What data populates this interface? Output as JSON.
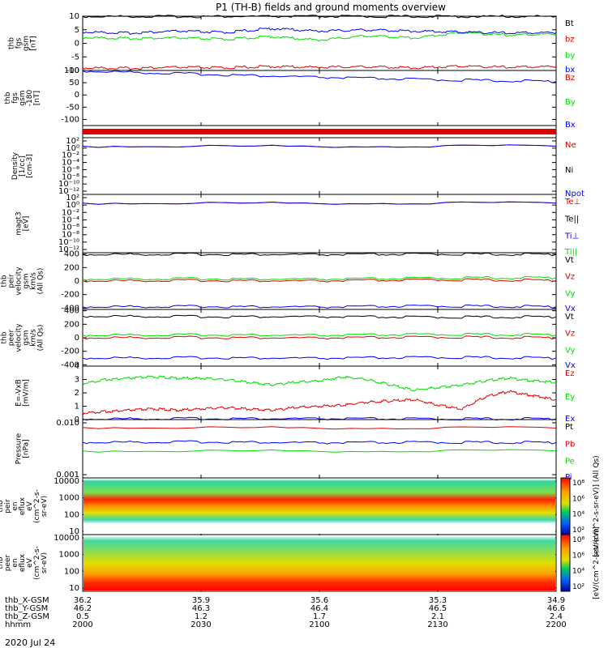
{
  "title": "P1 (TH-B) fields and ground moments overview",
  "date": "2020 Jul 24",
  "colors": {
    "black": "#000000",
    "red": "#e00000",
    "green": "#00dd00",
    "blue": "#0000ff",
    "magenta": "#c800c8"
  },
  "chart_data": [
    {
      "type": "line",
      "ylabel": [
        "thb",
        "fgs",
        "gsm",
        "[nT]"
      ],
      "ylim": [
        -10,
        10
      ],
      "yticks": [
        "10",
        "5",
        "0",
        "-5",
        "-10"
      ],
      "yticks_values": [
        10,
        5,
        0,
        -5,
        -10
      ],
      "legend": [
        {
          "label": "Bt",
          "color": "#000000"
        },
        {
          "label": "bz",
          "color": "#e00000"
        },
        {
          "label": "by",
          "color": "#00dd00"
        },
        {
          "label": "bx",
          "color": "#0000ff"
        }
      ],
      "series": [
        {
          "name": "Bt",
          "color": "#000000",
          "x": [
            0,
            0.2,
            0.4,
            0.6,
            0.8,
            1.0
          ],
          "values": [
            9.9,
            9.9,
            9.9,
            9.9,
            9.9,
            9.9
          ]
        },
        {
          "name": "bz",
          "color": "#e00000",
          "x": [
            0,
            0.1,
            0.2,
            0.3,
            0.4,
            0.5,
            0.6,
            0.7,
            0.8,
            0.9,
            1.0
          ],
          "values": [
            -9.0,
            -9.2,
            -8.8,
            -9.0,
            -8.5,
            -8.8,
            -8.6,
            -9.0,
            -8.4,
            -8.8,
            -8.5
          ]
        },
        {
          "name": "by",
          "color": "#00dd00",
          "x": [
            0,
            0.1,
            0.2,
            0.3,
            0.4,
            0.5,
            0.6,
            0.7,
            0.8,
            0.9,
            1.0
          ],
          "values": [
            2.2,
            1.8,
            2.0,
            1.5,
            2.5,
            1.2,
            2.8,
            2.0,
            4.0,
            3.0,
            3.5
          ]
        },
        {
          "name": "bx",
          "color": "#0000ff",
          "x": [
            0,
            0.1,
            0.2,
            0.3,
            0.4,
            0.5,
            0.6,
            0.7,
            0.8,
            0.9,
            1.0
          ],
          "values": [
            4.2,
            3.8,
            4.5,
            4.0,
            5.5,
            4.5,
            5.0,
            4.5,
            4.2,
            3.8,
            4.0
          ]
        }
      ]
    },
    {
      "type": "line",
      "ylabel": [
        "thb",
        "fgs",
        "gsm",
        "-180",
        "[nT]"
      ],
      "ylim": [
        -125,
        100
      ],
      "yticks": [
        "100",
        "50",
        "0",
        "-50",
        "-100"
      ],
      "yticks_values": [
        100,
        50,
        0,
        -50,
        -100
      ],
      "legend": [
        {
          "label": "Bz",
          "color": "#e00000"
        },
        {
          "label": "By",
          "color": "#00dd00"
        },
        {
          "label": "Bx",
          "color": "#0000ff"
        }
      ],
      "series": [
        {
          "name": "Bx",
          "color": "#0000ff",
          "x": [
            0,
            0.25,
            0.5,
            0.75,
            1.0
          ],
          "values": [
            98,
            85,
            72,
            62,
            55
          ]
        }
      ]
    },
    {
      "type": "band",
      "description_color": "#e00000"
    },
    {
      "type": "line",
      "ylabel": [
        "Density",
        "[1/cc]",
        "[cm-3]"
      ],
      "yscale": "log",
      "yticks": [
        "10²",
        "10⁰",
        "10⁻²",
        "10⁻⁴",
        "10⁻⁶",
        "10⁻⁸",
        "10⁻¹⁰",
        "10⁻¹²"
      ],
      "legend": [
        {
          "label": "Ne",
          "color": "#e00000"
        },
        {
          "label": "Ni",
          "color": "#000000"
        },
        {
          "label": "Npot",
          "color": "#0000ff"
        }
      ],
      "series": [
        {
          "name": "Ne",
          "color": "#e00000",
          "x": [
            0,
            1
          ],
          "values": [
            1.0,
            1.0
          ]
        },
        {
          "name": "Npot",
          "color": "#0000ff",
          "x": [
            0,
            1
          ],
          "values": [
            1.0,
            1.0
          ]
        }
      ]
    },
    {
      "type": "line",
      "ylabel": [
        "magt3",
        "[eV]"
      ],
      "yscale": "log",
      "yticks": [
        "10²",
        "10⁰",
        "10⁻²",
        "10⁻⁴",
        "10⁻⁶",
        "10⁻⁸",
        "10⁻¹⁰",
        "10⁻¹²"
      ],
      "legend": [
        {
          "label": "Te⊥",
          "color": "#e00000"
        },
        {
          "label": "Te||",
          "color": "#000000"
        },
        {
          "label": "Ti⊥",
          "color": "#0000ff"
        },
        {
          "label": "Ti||",
          "color": "#00dd00"
        }
      ],
      "series": [
        {
          "name": "Te⊥",
          "color": "#e00000",
          "x": [
            0,
            1
          ],
          "values": [
            1.0,
            1.0
          ]
        },
        {
          "name": "Ti⊥",
          "color": "#0000ff",
          "x": [
            0,
            1
          ],
          "values": [
            1.0,
            1.0
          ]
        }
      ]
    },
    {
      "type": "line",
      "ylabel": [
        "thb",
        "peir",
        "velocity",
        "gsm",
        "km/s",
        "(All Qs)"
      ],
      "ylim": [
        -420,
        420
      ],
      "yticks": [
        "400",
        "200",
        "0",
        "-200",
        "-400"
      ],
      "yticks_values": [
        400,
        200,
        0,
        -200,
        -400
      ],
      "legend": [
        {
          "label": "Vt",
          "color": "#000000"
        },
        {
          "label": "Vz",
          "color": "#e00000"
        },
        {
          "label": "Vy",
          "color": "#00dd00"
        },
        {
          "label": "Vx",
          "color": "#0000ff"
        }
      ],
      "series": [
        {
          "name": "Vt",
          "color": "#000000",
          "x": [
            0,
            0.25,
            0.5,
            0.75,
            1.0
          ],
          "values": [
            395,
            398,
            390,
            400,
            395
          ]
        },
        {
          "name": "Vz",
          "color": "#e00000",
          "x": [
            0,
            0.25,
            0.5,
            0.75,
            1.0
          ],
          "values": [
            5,
            10,
            0,
            20,
            10
          ]
        },
        {
          "name": "Vy",
          "color": "#00dd00",
          "x": [
            0,
            0.25,
            0.5,
            0.75,
            1.0
          ],
          "values": [
            30,
            35,
            25,
            45,
            50
          ]
        },
        {
          "name": "Vx",
          "color": "#0000ff",
          "x": [
            0,
            0.25,
            0.5,
            0.75,
            1.0
          ],
          "values": [
            -380,
            -375,
            -385,
            -370,
            -380
          ]
        }
      ]
    },
    {
      "type": "line",
      "ylabel": [
        "thb",
        "peer",
        "velocity",
        "gsm",
        "km/s",
        "(All Qs)"
      ],
      "ylim": [
        -420,
        420
      ],
      "yticks": [
        "400",
        "200",
        "0",
        "-200",
        "-400"
      ],
      "yticks_values": [
        400,
        200,
        0,
        -200,
        -400
      ],
      "legend": [
        {
          "label": "Vt",
          "color": "#000000"
        },
        {
          "label": "Vz",
          "color": "#e00000"
        },
        {
          "label": "Vy",
          "color": "#00dd00"
        },
        {
          "label": "Vx",
          "color": "#0000ff"
        }
      ],
      "series": [
        {
          "name": "Vt",
          "color": "#000000",
          "x": [
            0,
            0.25,
            0.5,
            0.75,
            1.0
          ],
          "values": [
            320,
            315,
            310,
            305,
            310
          ]
        },
        {
          "name": "Vz",
          "color": "#e00000",
          "x": [
            0,
            0.25,
            0.5,
            0.75,
            1.0
          ],
          "values": [
            0,
            5,
            -5,
            10,
            0
          ]
        },
        {
          "name": "Vy",
          "color": "#00dd00",
          "x": [
            0,
            0.25,
            0.5,
            0.75,
            1.0
          ],
          "values": [
            40,
            45,
            35,
            50,
            45
          ]
        },
        {
          "name": "Vx",
          "color": "#0000ff",
          "x": [
            0,
            0.25,
            0.5,
            0.75,
            1.0
          ],
          "values": [
            -300,
            -295,
            -305,
            -290,
            -300
          ]
        }
      ]
    },
    {
      "type": "line",
      "ylabel": [
        "E=-VxB",
        "[mV/m]"
      ],
      "ylim": [
        0,
        4
      ],
      "yticks": [
        "4",
        "3",
        "2",
        "1",
        "0"
      ],
      "yticks_values": [
        4,
        3,
        2,
        1,
        0
      ],
      "legend": [
        {
          "label": "Ez",
          "color": "#e00000"
        },
        {
          "label": "Ey",
          "color": "#00dd00"
        },
        {
          "label": "Ex",
          "color": "#0000ff"
        }
      ],
      "series": [
        {
          "name": "Ey",
          "color": "#00dd00",
          "x": [
            0,
            0.05,
            0.1,
            0.15,
            0.2,
            0.25,
            0.3,
            0.35,
            0.4,
            0.45,
            0.5,
            0.55,
            0.6,
            0.65,
            0.7,
            0.75,
            0.8,
            0.85,
            0.9,
            0.95,
            1.0
          ],
          "values": [
            2.7,
            3.0,
            3.1,
            3.2,
            3.1,
            3.1,
            3.0,
            2.8,
            2.6,
            2.8,
            2.9,
            3.2,
            3.0,
            2.6,
            2.2,
            2.4,
            2.6,
            2.9,
            3.1,
            2.9,
            2.8
          ]
        },
        {
          "name": "Ez",
          "color": "#e00000",
          "x": [
            0,
            0.05,
            0.1,
            0.15,
            0.2,
            0.25,
            0.3,
            0.35,
            0.4,
            0.45,
            0.5,
            0.55,
            0.6,
            0.65,
            0.7,
            0.75,
            0.8,
            0.85,
            0.9,
            0.95,
            1.0
          ],
          "values": [
            0.5,
            0.6,
            0.7,
            0.8,
            0.7,
            0.8,
            0.9,
            0.8,
            0.7,
            0.9,
            1.0,
            1.1,
            1.3,
            1.4,
            1.5,
            1.1,
            0.8,
            1.7,
            2.1,
            1.8,
            1.5
          ]
        },
        {
          "name": "Ex",
          "color": "#0000ff",
          "x": [
            0,
            0.25,
            0.5,
            0.75,
            1.0
          ],
          "values": [
            0.05,
            0.08,
            0.06,
            0.05,
            0.06
          ]
        }
      ]
    },
    {
      "type": "line",
      "ylabel": [
        "Pressure",
        "[nPa]"
      ],
      "yscale": "log",
      "yticks": [
        "0.010",
        "0.001"
      ],
      "legend": [
        {
          "label": "Pt",
          "color": "#000000"
        },
        {
          "label": "Pb",
          "color": "#e00000"
        },
        {
          "label": "Pe",
          "color": "#00dd00"
        },
        {
          "label": "Pi",
          "color": "#0000ff"
        }
      ],
      "series": [
        {
          "name": "Pb",
          "color": "#e00000",
          "x": [
            0,
            1
          ],
          "values": [
            0.04,
            0.038
          ]
        },
        {
          "name": "Pi",
          "color": "#0000ff",
          "x": [
            0,
            0.25,
            0.5,
            0.75,
            1.0
          ],
          "values": [
            0.011,
            0.0115,
            0.0105,
            0.011,
            0.0108
          ]
        },
        {
          "name": "Pe",
          "color": "#00dd00",
          "x": [
            0,
            1
          ],
          "values": [
            0.0052,
            0.0052
          ]
        }
      ]
    },
    {
      "type": "heatmap",
      "ylabel": [
        "thb",
        "peir",
        "en",
        "eflux",
        "eV",
        "(cm^2-s-",
        "sr-eV)"
      ],
      "yscale": "log",
      "yticks": [
        "10000",
        "1000",
        "100",
        "10"
      ],
      "colorbar_ticks": [
        "10⁸",
        "10⁶",
        "10⁴",
        "10²"
      ],
      "colorbar_label": "[eV/(cm^2-s-sr-eV)] (All Qs)"
    },
    {
      "type": "heatmap",
      "ylabel": [
        "thb",
        "peer",
        "en",
        "eflux",
        "eV",
        "(cm^2-s-",
        "sr-eV)"
      ],
      "yscale": "log",
      "yticks": [
        "10000",
        "1000",
        "100",
        "10"
      ],
      "colorbar_ticks": [
        "10⁸",
        "10⁶",
        "10⁴",
        "10²"
      ],
      "colorbar_label": "[eV/(cm^2-s-sr-eV)]"
    }
  ],
  "x_axis": {
    "row_labels": [
      "thb_X-GSM",
      "thb_Y-GSM",
      "thb_Z-GSM",
      "hhmm"
    ],
    "columns": [
      [
        "36.2",
        "46.2",
        "0.5",
        "2000"
      ],
      [
        "35.9",
        "46.3",
        "1.2",
        "2030"
      ],
      [
        "35.6",
        "46.4",
        "1.7",
        "2100"
      ],
      [
        "35.3",
        "46.5",
        "2.1",
        "2130"
      ],
      [
        "34.9",
        "46.6",
        "2.4",
        "2200"
      ]
    ]
  }
}
